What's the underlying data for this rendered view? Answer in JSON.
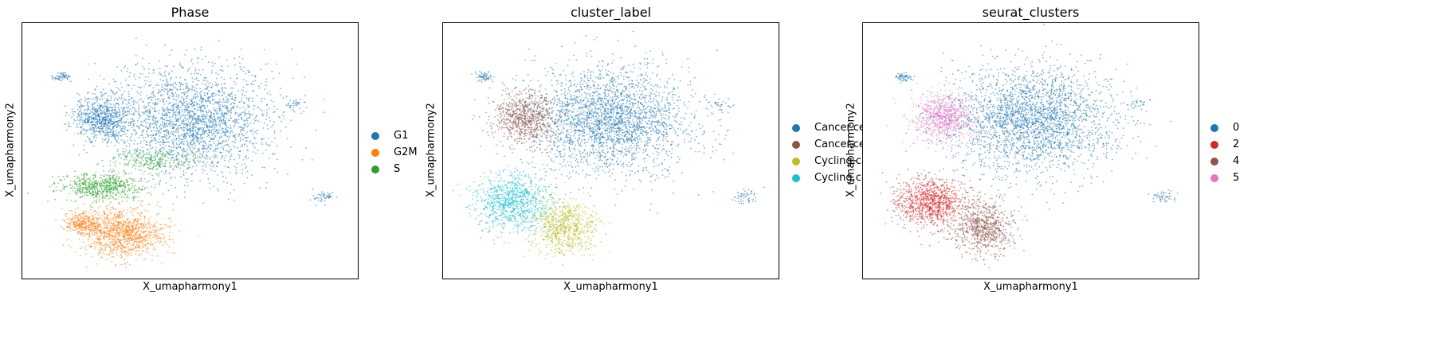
{
  "chart_data": [
    {
      "type": "scatter",
      "title": "Phase",
      "xlabel": "X_umapharmony1",
      "ylabel": "X_umapharmony2",
      "xlim": [
        0,
        100
      ],
      "ylim": [
        0,
        100
      ],
      "grid": false,
      "legend_position": "right",
      "series": [
        {
          "name": "G1",
          "color": "#1f77b4",
          "regions": [
            {
              "cx": 50,
              "cy": 62,
              "rx": 27,
              "ry": 23,
              "n": 2400
            },
            {
              "cx": 24,
              "cy": 63,
              "rx": 10,
              "ry": 10,
              "n": 700
            },
            {
              "cx": 12,
              "cy": 79,
              "rx": 3,
              "ry": 2,
              "n": 60
            },
            {
              "cx": 90,
              "cy": 32,
              "rx": 4,
              "ry": 3,
              "n": 50
            },
            {
              "cx": 82,
              "cy": 68,
              "rx": 4,
              "ry": 3,
              "n": 30
            }
          ]
        },
        {
          "name": "G2M",
          "color": "#ff7f0e",
          "regions": [
            {
              "cx": 30,
              "cy": 18,
              "rx": 14,
              "ry": 10,
              "n": 1100
            },
            {
              "cx": 18,
              "cy": 22,
              "rx": 6,
              "ry": 5,
              "n": 300
            }
          ]
        },
        {
          "name": "S",
          "color": "#2ca02c",
          "regions": [
            {
              "cx": 24,
              "cy": 36,
              "rx": 14,
              "ry": 6,
              "n": 650
            },
            {
              "cx": 40,
              "cy": 46,
              "rx": 14,
              "ry": 5,
              "n": 250
            }
          ]
        }
      ]
    },
    {
      "type": "scatter",
      "title": "cluster_label",
      "xlabel": "X_umapharmony1",
      "ylabel": "X_umapharmony2",
      "xlim": [
        0,
        100
      ],
      "ylim": [
        0,
        100
      ],
      "grid": false,
      "legend_position": "right",
      "series": [
        {
          "name": "Cancer.cel",
          "color": "#1f77b4",
          "regions": [
            {
              "cx": 50,
              "cy": 62,
              "rx": 27,
              "ry": 23,
              "n": 2600
            },
            {
              "cx": 12,
              "cy": 79,
              "rx": 3,
              "ry": 2,
              "n": 60
            },
            {
              "cx": 90,
              "cy": 32,
              "rx": 4,
              "ry": 3,
              "n": 50
            },
            {
              "cx": 82,
              "cy": 68,
              "rx": 4,
              "ry": 3,
              "n": 30
            }
          ]
        },
        {
          "name": "Cancer.ce",
          "color": "#8c564b",
          "regions": [
            {
              "cx": 24,
              "cy": 63,
              "rx": 10,
              "ry": 11,
              "n": 750
            }
          ]
        },
        {
          "name": "Cycling.ca",
          "color": "#bcbd22",
          "regions": [
            {
              "cx": 36,
              "cy": 20,
              "rx": 10,
              "ry": 12,
              "n": 750
            }
          ]
        },
        {
          "name": "Cycling.ca",
          "color": "#17becf",
          "regions": [
            {
              "cx": 21,
              "cy": 30,
              "rx": 12,
              "ry": 12,
              "n": 950
            }
          ]
        }
      ]
    },
    {
      "type": "scatter",
      "title": "seurat_clusters",
      "xlabel": "X_umapharmony1",
      "ylabel": "X_umapharmony2",
      "xlim": [
        0,
        100
      ],
      "ylim": [
        0,
        100
      ],
      "grid": false,
      "legend_position": "right",
      "series": [
        {
          "name": "0",
          "color": "#1f77b4",
          "regions": [
            {
              "cx": 50,
              "cy": 62,
              "rx": 27,
              "ry": 23,
              "n": 2600
            },
            {
              "cx": 12,
              "cy": 79,
              "rx": 3,
              "ry": 2,
              "n": 60
            },
            {
              "cx": 90,
              "cy": 32,
              "rx": 4,
              "ry": 3,
              "n": 50
            },
            {
              "cx": 82,
              "cy": 68,
              "rx": 4,
              "ry": 3,
              "n": 30
            }
          ]
        },
        {
          "name": "2",
          "color": "#d62728",
          "regions": [
            {
              "cx": 20,
              "cy": 30,
              "rx": 12,
              "ry": 11,
              "n": 950
            }
          ]
        },
        {
          "name": "4",
          "color": "#8c564b",
          "regions": [
            {
              "cx": 36,
              "cy": 20,
              "rx": 10,
              "ry": 12,
              "n": 800
            }
          ]
        },
        {
          "name": "5",
          "color": "#e377c2",
          "regions": [
            {
              "cx": 24,
              "cy": 63,
              "rx": 10,
              "ry": 11,
              "n": 750
            }
          ]
        }
      ]
    }
  ]
}
